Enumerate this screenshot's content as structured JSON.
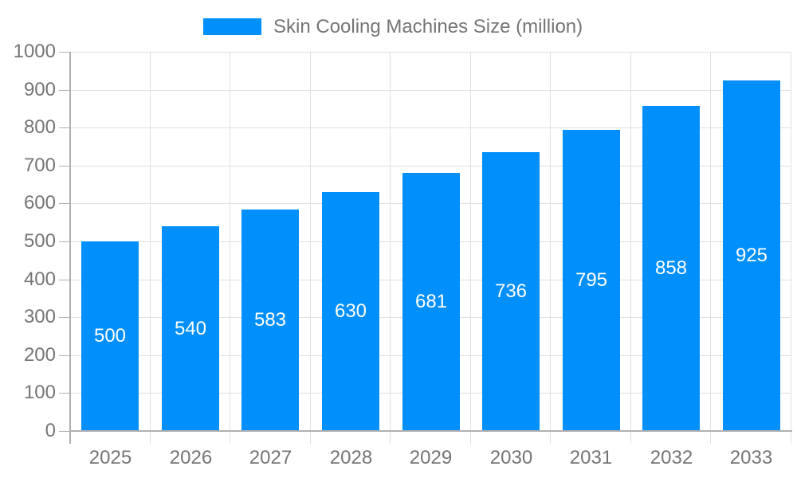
{
  "legend": {
    "label": "Skin Cooling Machines Size (million)"
  },
  "chart_data": {
    "type": "bar",
    "title": "Skin Cooling Machines Size (million)",
    "categories": [
      "2025",
      "2026",
      "2027",
      "2028",
      "2029",
      "2030",
      "2031",
      "2032",
      "2033"
    ],
    "values": [
      500,
      540,
      583,
      630,
      681,
      736,
      795,
      858,
      925
    ],
    "xlabel": "",
    "ylabel": "",
    "ylim": [
      0,
      1000
    ],
    "ytick_step": 100,
    "grid": true,
    "legend_position": "top",
    "data_labels": "inside-center",
    "colors": {
      "bar": "#008FFB",
      "bar_label_text": "#ffffff",
      "axis_text": "#757575",
      "legend_text": "#757575",
      "grid_line": "#e0e0e0",
      "axis_line": "#b0b0b0",
      "background": "#ffffff"
    }
  }
}
